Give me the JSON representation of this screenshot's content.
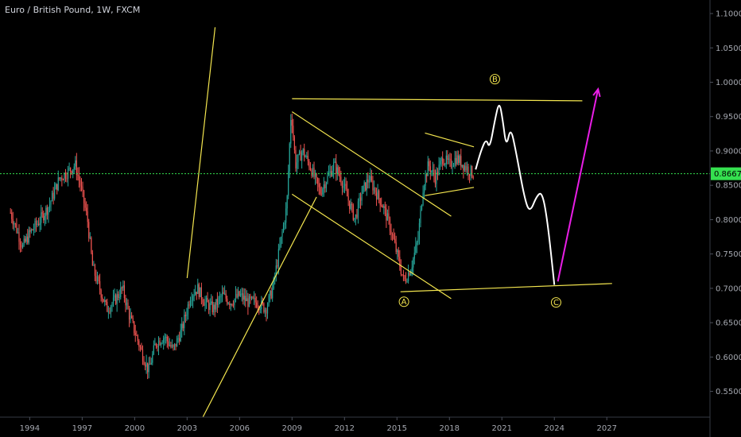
{
  "header": {
    "symbol_title": "Euro / British Pound, 1W, FXCM"
  },
  "colors": {
    "background": "#000000",
    "up_candle": "#26a69a",
    "down_candle": "#ef5350",
    "trendline": "#f4e64f",
    "projection": "#ffffff",
    "arrow": "#e91ee6",
    "current_price": "#35e04f",
    "axis_text": "#a5a8b0"
  },
  "chart_data": {
    "type": "candlestick",
    "title": "Euro / British Pound, 1W, FXCM",
    "x_range": [
      1992.3,
      2032.9
    ],
    "y_range": [
      0.5125,
      1.1197
    ],
    "x_ticks": [
      {
        "year": 1994,
        "label": "1994"
      },
      {
        "year": 1997,
        "label": "1997"
      },
      {
        "year": 2000,
        "label": "2000"
      },
      {
        "year": 2003,
        "label": "2003"
      },
      {
        "year": 2006,
        "label": "2006"
      },
      {
        "year": 2009,
        "label": "2009"
      },
      {
        "year": 2012,
        "label": "2012"
      },
      {
        "year": 2015,
        "label": "2015"
      },
      {
        "year": 2018,
        "label": "2018"
      },
      {
        "year": 2021,
        "label": "2021"
      },
      {
        "year": 2024,
        "label": "2024"
      },
      {
        "year": 2027,
        "label": "2027"
      }
    ],
    "y_ticks": [
      {
        "value": 1.1,
        "label": "1.10000"
      },
      {
        "value": 1.05,
        "label": "1.05000"
      },
      {
        "value": 1.0,
        "label": "1.00000"
      },
      {
        "value": 0.95,
        "label": "0.95000"
      },
      {
        "value": 0.9,
        "label": "0.90000"
      },
      {
        "value": 0.85,
        "label": "0.85000"
      },
      {
        "value": 0.8,
        "label": "0.80000"
      },
      {
        "value": 0.75,
        "label": "0.75000"
      },
      {
        "value": 0.7,
        "label": "0.70000"
      },
      {
        "value": 0.65,
        "label": "0.65000"
      },
      {
        "value": 0.6,
        "label": "0.60000"
      },
      {
        "value": 0.55,
        "label": "0.55000"
      }
    ],
    "current_price": {
      "value": 0.8668,
      "label": "0.86679"
    },
    "price_path": [
      [
        1992.9,
        0.81
      ],
      [
        1993.2,
        0.79
      ],
      [
        1993.6,
        0.76
      ],
      [
        1994.0,
        0.78
      ],
      [
        1994.6,
        0.8
      ],
      [
        1995.1,
        0.82
      ],
      [
        1995.7,
        0.86
      ],
      [
        1996.2,
        0.87
      ],
      [
        1996.6,
        0.88
      ],
      [
        1996.9,
        0.85
      ],
      [
        1997.3,
        0.8
      ],
      [
        1997.6,
        0.73
      ],
      [
        1998.0,
        0.7
      ],
      [
        1998.4,
        0.67
      ],
      [
        1998.8,
        0.68
      ],
      [
        1999.3,
        0.7
      ],
      [
        1999.7,
        0.66
      ],
      [
        2000.1,
        0.63
      ],
      [
        2000.5,
        0.6
      ],
      [
        2000.8,
        0.58
      ],
      [
        2001.2,
        0.62
      ],
      [
        2001.7,
        0.63
      ],
      [
        2002.2,
        0.61
      ],
      [
        2002.7,
        0.64
      ],
      [
        2003.2,
        0.69
      ],
      [
        2003.6,
        0.7
      ],
      [
        2004.0,
        0.68
      ],
      [
        2004.5,
        0.67
      ],
      [
        2005.0,
        0.69
      ],
      [
        2005.5,
        0.68
      ],
      [
        2006.0,
        0.69
      ],
      [
        2006.5,
        0.68
      ],
      [
        2007.0,
        0.68
      ],
      [
        2007.5,
        0.67
      ],
      [
        2007.9,
        0.7
      ],
      [
        2008.3,
        0.76
      ],
      [
        2008.7,
        0.82
      ],
      [
        2008.95,
        0.96
      ],
      [
        2009.2,
        0.88
      ],
      [
        2009.6,
        0.9
      ],
      [
        2010.0,
        0.88
      ],
      [
        2010.3,
        0.86
      ],
      [
        2010.6,
        0.84
      ],
      [
        2011.0,
        0.86
      ],
      [
        2011.4,
        0.88
      ],
      [
        2011.8,
        0.86
      ],
      [
        2012.2,
        0.83
      ],
      [
        2012.6,
        0.8
      ],
      [
        2013.0,
        0.84
      ],
      [
        2013.4,
        0.86
      ],
      [
        2013.8,
        0.84
      ],
      [
        2014.2,
        0.82
      ],
      [
        2014.6,
        0.79
      ],
      [
        2015.0,
        0.75
      ],
      [
        2015.4,
        0.71
      ],
      [
        2015.8,
        0.73
      ],
      [
        2016.2,
        0.77
      ],
      [
        2016.5,
        0.85
      ],
      [
        2016.8,
        0.88
      ],
      [
        2017.2,
        0.86
      ],
      [
        2017.6,
        0.89
      ],
      [
        2018.0,
        0.88
      ],
      [
        2018.4,
        0.89
      ],
      [
        2018.8,
        0.88
      ],
      [
        2019.2,
        0.87
      ],
      [
        2019.4,
        0.866
      ]
    ],
    "trendlines": [
      {
        "name": "channel-upper-rising",
        "from": [
          2003.0,
          0.715
        ],
        "to": [
          2004.6,
          1.08
        ]
      },
      {
        "name": "channel-lower-rising",
        "from": [
          2003.9,
          0.5125
        ],
        "to": [
          2010.4,
          0.833
        ]
      },
      {
        "name": "falling-channel-upper",
        "from": [
          2009.0,
          0.957
        ],
        "to": [
          2018.1,
          0.805
        ]
      },
      {
        "name": "falling-channel-lower",
        "from": [
          2009.0,
          0.837
        ],
        "to": [
          2018.1,
          0.685
        ]
      },
      {
        "name": "top-horizontal",
        "from": [
          2009.0,
          0.976
        ],
        "to": [
          2025.6,
          0.973
        ]
      },
      {
        "name": "bottom-horizontal",
        "from": [
          2015.2,
          0.695
        ],
        "to": [
          2027.3,
          0.707
        ]
      },
      {
        "name": "triangle-upper",
        "from": [
          2016.6,
          0.926
        ],
        "to": [
          2019.4,
          0.906
        ]
      },
      {
        "name": "triangle-lower",
        "from": [
          2016.6,
          0.835
        ],
        "to": [
          2019.4,
          0.847
        ]
      }
    ],
    "projection_path": [
      [
        2019.5,
        0.873
      ],
      [
        2019.8,
        0.9
      ],
      [
        2020.1,
        0.918
      ],
      [
        2020.3,
        0.903
      ],
      [
        2020.6,
        0.945
      ],
      [
        2020.85,
        0.973
      ],
      [
        2021.05,
        0.945
      ],
      [
        2021.25,
        0.905
      ],
      [
        2021.5,
        0.935
      ],
      [
        2021.8,
        0.9
      ],
      [
        2022.3,
        0.83
      ],
      [
        2022.6,
        0.81
      ],
      [
        2023.0,
        0.835
      ],
      [
        2023.3,
        0.84
      ],
      [
        2023.6,
        0.8
      ],
      [
        2024.0,
        0.705
      ]
    ],
    "projection_arrow": {
      "from": [
        2024.2,
        0.71
      ],
      "to": [
        2026.5,
        0.99
      ]
    },
    "wave_labels": [
      {
        "label": "B",
        "x": 2020.6,
        "y": 1.0045
      },
      {
        "label": "A",
        "x": 2015.4,
        "y": 0.6805
      },
      {
        "label": "C",
        "x": 2024.1,
        "y": 0.6795
      }
    ]
  }
}
